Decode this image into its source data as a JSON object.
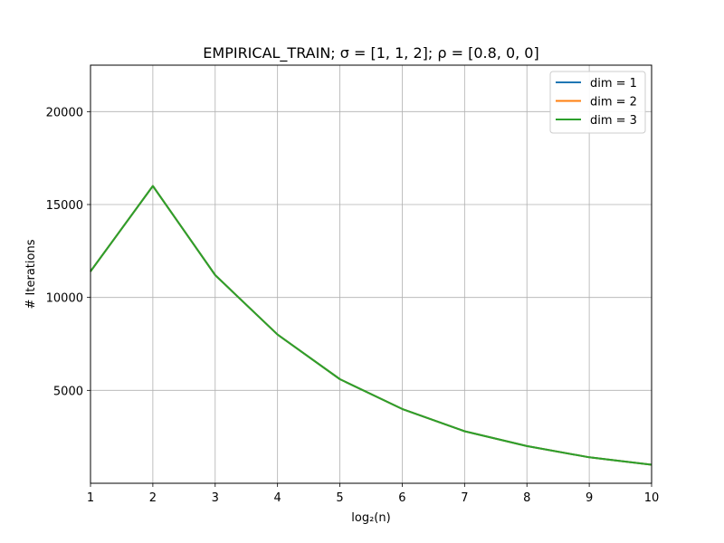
{
  "chart_data": {
    "type": "line",
    "title": "EMPIRICAL_TRAIN;  σ = [1, 1, 2];  ρ = [0.8, 0, 0]",
    "xlabel": "log₂(n)",
    "ylabel": "# Iterations",
    "xlim": [
      1,
      10
    ],
    "ylim": [
      0,
      22500
    ],
    "xticks": [
      1,
      2,
      3,
      4,
      5,
      6,
      7,
      8,
      9,
      10
    ],
    "yticks": [
      5000,
      10000,
      15000,
      20000
    ],
    "grid": true,
    "legend_position": "top-right",
    "x": [
      1,
      2,
      3,
      4,
      5,
      6,
      7,
      8,
      9,
      10
    ],
    "series": [
      {
        "name": "dim = 1",
        "color": "#1f77b4",
        "values": [
          11400,
          16000,
          11200,
          8000,
          5600,
          4000,
          2800,
          2000,
          1400,
          1000
        ]
      },
      {
        "name": "dim = 2",
        "color": "#ff7f0e",
        "values": [
          11400,
          16000,
          11200,
          8000,
          5600,
          4000,
          2800,
          2000,
          1400,
          1000
        ]
      },
      {
        "name": "dim = 3",
        "color": "#2ca02c",
        "values": [
          11400,
          16000,
          11200,
          8000,
          5600,
          4000,
          2800,
          2000,
          1400,
          1000
        ]
      }
    ]
  }
}
